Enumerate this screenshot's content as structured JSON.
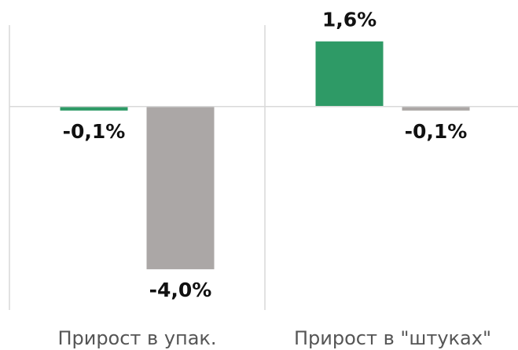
{
  "chart_data": {
    "type": "bar",
    "categories": [
      "Прирост в упак.",
      "Прирост в \"штуках\""
    ],
    "series": [
      {
        "color": "#2e9a66",
        "values": [
          -0.1,
          1.6
        ],
        "value_labels": [
          "-0,1%",
          "1,6%"
        ]
      },
      {
        "color": "#aba7a6",
        "values": [
          -4.0,
          -0.1
        ],
        "value_labels": [
          "-4,0%",
          "-0,1%"
        ]
      }
    ],
    "ylim": [
      -5,
      2
    ]
  }
}
